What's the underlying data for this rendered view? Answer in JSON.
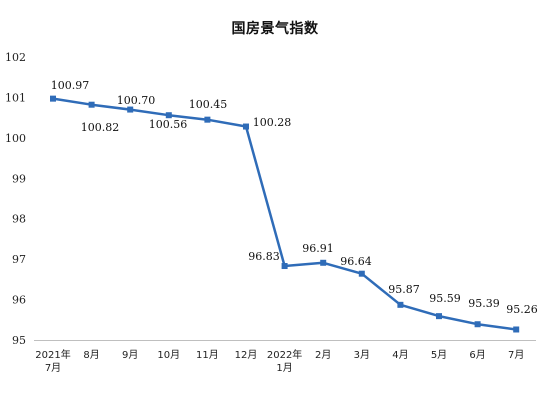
{
  "chart_data": {
    "type": "line",
    "title": "国房景气指数",
    "categories": [
      "2021年\n7月",
      "8月",
      "9月",
      "10月",
      "11月",
      "12月",
      "2022年\n1月",
      "2月",
      "3月",
      "4月",
      "5月",
      "6月",
      "7月"
    ],
    "series": [
      {
        "values": [
          100.97,
          100.82,
          100.7,
          100.56,
          100.45,
          100.28,
          96.83,
          96.91,
          96.64,
          95.87,
          95.59,
          95.39,
          95.26
        ]
      }
    ],
    "data_labels": [
      "100.97",
      "100.82",
      "100.70",
      "100.56",
      "100.45",
      "100.28",
      "96.83",
      "96.91",
      "96.64",
      "95.87",
      "95.59",
      "95.39",
      "95.26"
    ],
    "ylim": [
      95,
      102
    ],
    "yticks": [
      95,
      96,
      97,
      98,
      99,
      100,
      101,
      102
    ],
    "grid": false,
    "line_color": "#2F6CB8",
    "marker": "square"
  }
}
